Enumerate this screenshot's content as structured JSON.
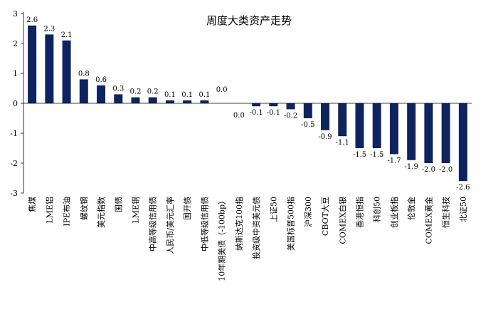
{
  "chart_data": {
    "type": "bar",
    "title": "周度大类资产走势",
    "xlabel": "",
    "ylabel": "",
    "ylim": [
      -3,
      3
    ],
    "yticks": [
      -3,
      -2,
      -1,
      0,
      1,
      2,
      3
    ],
    "grid": false,
    "bar_color": "#0e2460",
    "categories": [
      "焦煤",
      "LME铝",
      "IPE布油",
      "螺纹钢",
      "美元指数",
      "国债",
      "LME铜",
      "中高等级信用债",
      "人民币/美元汇率",
      "国开债",
      "中低等级信用债",
      "10年期美债（-100bp）",
      "纳斯达克100指",
      "投资级中资美元债",
      "上证50",
      "美国标普500指",
      "沪深300",
      "CBOT大豆",
      "COMEX白银",
      "香港恒指",
      "科创50",
      "创业板指",
      "伦敦金",
      "COMEX黄金",
      "恒生科技",
      "北证50"
    ],
    "values": [
      2.6,
      2.3,
      2.1,
      0.8,
      0.6,
      0.3,
      0.2,
      0.2,
      0.1,
      0.1,
      0.1,
      0.0,
      0.0,
      -0.1,
      -0.1,
      -0.2,
      -0.5,
      -0.9,
      -1.1,
      -1.5,
      -1.5,
      -1.7,
      -1.9,
      -2.0,
      -2.0,
      -2.6
    ],
    "data_labels": [
      "2.6",
      "2.3",
      "2.1",
      "0.8",
      "0.6",
      "0.3",
      "0.2",
      "0.2",
      "0.1",
      "0.1",
      "0.1",
      "0.0",
      "0.0",
      "-0.1",
      "-0.1",
      "-0.2",
      "-0.5",
      "-0.9",
      "-1.1",
      "-1.5",
      "-1.5",
      "-1.7",
      "-1.9",
      "-2.0",
      "-2.0",
      "-2.6"
    ]
  }
}
